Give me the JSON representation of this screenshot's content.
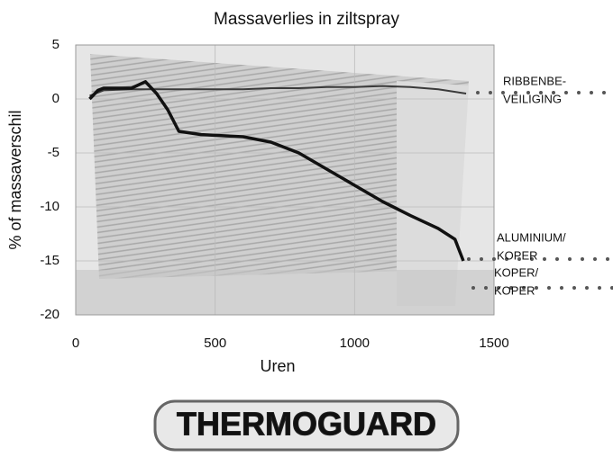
{
  "chart_data": {
    "type": "line",
    "title": "Massaverlies in ziltspray",
    "x_label": "Uren",
    "y_label": "% of massaverschil",
    "xlim": [
      0,
      1500
    ],
    "xticks": [
      0,
      500,
      1000,
      1500
    ],
    "ylim": [
      -20,
      5
    ],
    "yticks": [
      5,
      0,
      -5,
      -10,
      -15,
      -20
    ],
    "grid": true,
    "series": [
      {
        "color": "#3a3a3a",
        "x": [
          50,
          100,
          200,
          300,
          400,
          500,
          600,
          700,
          800,
          900,
          1000,
          1100,
          1200,
          1300,
          1400
        ],
        "values": [
          0.3,
          0.8,
          0.9,
          0.9,
          0.9,
          0.9,
          0.9,
          1.0,
          1.0,
          1.1,
          1.1,
          1.2,
          1.1,
          0.9,
          0.5
        ]
      },
      {
        "color": "#111111",
        "x": [
          50,
          80,
          100,
          150,
          200,
          250,
          290,
          330,
          370,
          450,
          600,
          700,
          800,
          900,
          1000,
          1100,
          1200,
          1300,
          1360,
          1390
        ],
        "values": [
          0,
          0.8,
          1,
          1,
          1,
          1.6,
          0.5,
          -1,
          -3,
          -3.3,
          -3.5,
          -4,
          -5,
          -6.5,
          -8,
          -9.5,
          -10.8,
          -12,
          -13,
          -15
        ]
      }
    ],
    "annotations": [
      [
        "RIBBENBE-",
        "VEILIGING"
      ],
      [
        "ALUMINIUM/",
        "KOPER"
      ],
      [
        "KOPER/",
        "KOPER"
      ]
    ],
    "logo": "THERMOGUARD"
  }
}
